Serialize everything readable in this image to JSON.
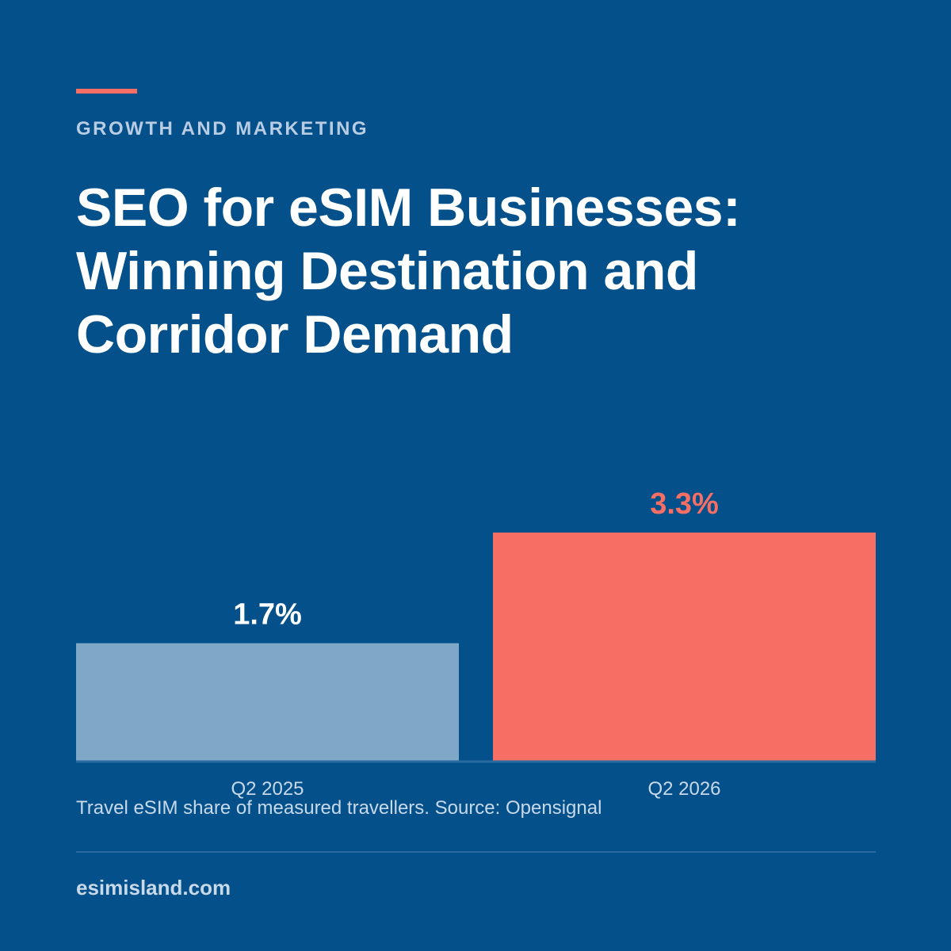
{
  "header": {
    "kicker": "GROWTH AND MARKETING",
    "title": "SEO for eSIM Businesses: Winning Destination and Corridor Demand"
  },
  "colors": {
    "background": "#03508a",
    "accent": "#f76e65",
    "bar_primary": "#7fa7c8",
    "bar_highlight": "#f76e65"
  },
  "chart_data": {
    "type": "bar",
    "categories": [
      "Q2 2025",
      "Q2 2026"
    ],
    "values": [
      1.7,
      3.3
    ],
    "value_labels": [
      "1.7%",
      "3.3%"
    ],
    "unit": "%",
    "ylim": [
      0,
      5.5
    ],
    "grid": false,
    "legend": "none",
    "bar_colors": [
      "#7fa7c8",
      "#f76e65"
    ],
    "value_label_colors": [
      "#ffffff",
      "#f76e65"
    ]
  },
  "caption": "Travel eSIM share of measured travellers. Source: Opensignal",
  "footer": {
    "site": "esimisland.com"
  }
}
